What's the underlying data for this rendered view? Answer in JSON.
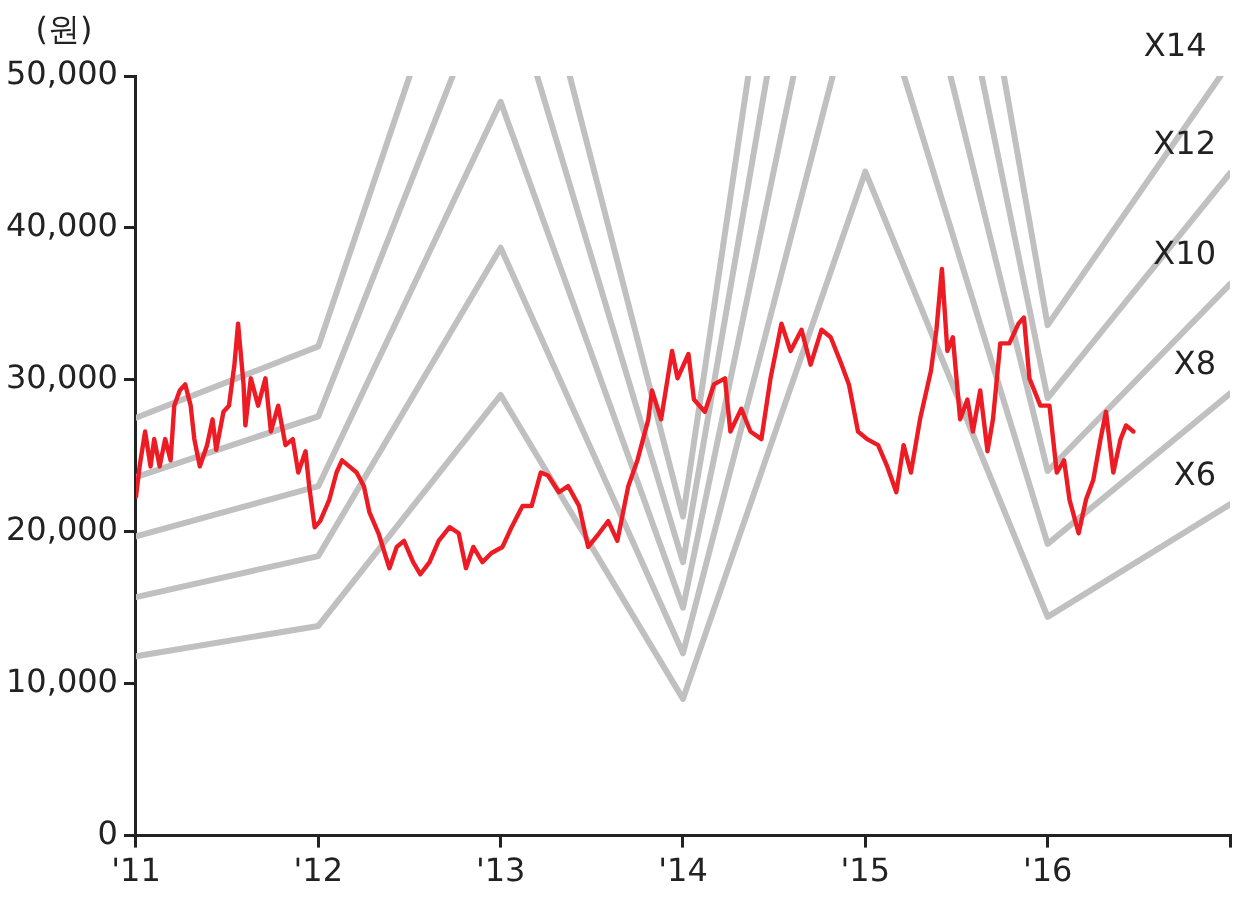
{
  "chart_data": {
    "type": "line",
    "ylabel": "(원)",
    "xlim": [
      2011,
      2017
    ],
    "ylim": [
      0,
      50000
    ],
    "xticks": [
      {
        "value": 2011,
        "label": "'11"
      },
      {
        "value": 2012,
        "label": "'12"
      },
      {
        "value": 2013,
        "label": "'13"
      },
      {
        "value": 2014,
        "label": "'14"
      },
      {
        "value": 2015,
        "label": "'15"
      },
      {
        "value": 2016,
        "label": "'16"
      },
      {
        "value": 2017,
        "label": null
      }
    ],
    "yticks": [
      0,
      {
        "value": 10000,
        "label": "10,000"
      },
      {
        "value": 20000,
        "label": "20,000"
      },
      {
        "value": 30000,
        "label": "30,000"
      },
      {
        "value": 40000,
        "label": "40,000"
      },
      {
        "value": 50000,
        "label": "50,000"
      }
    ],
    "grid": false,
    "legend": false,
    "marker": "none",
    "line_style": "solid",
    "series": [
      {
        "name": "X6",
        "color": "#c0c0c0",
        "x": [
          2011,
          2012,
          2013,
          2014,
          2015,
          2016,
          2017
        ],
        "values": [
          11800,
          13800,
          29000,
          9000,
          43700,
          14400,
          21800
        ]
      },
      {
        "name": "X8",
        "color": "#c0c0c0",
        "x": [
          2011,
          2012,
          2013,
          2014,
          2014.821,
          2015,
          2015.212,
          2016,
          2017
        ],
        "values": [
          15700,
          18400,
          38700,
          12000,
          50000,
          null,
          50000,
          19200,
          29100
        ]
      },
      {
        "name": "X10",
        "color": "#c0c0c0",
        "x": [
          2011,
          2012,
          2013,
          2014,
          2014.606,
          2015,
          2015.467,
          2016,
          2017
        ],
        "values": [
          19700,
          23000,
          48300,
          15000,
          50000,
          null,
          50000,
          24000,
          36300
        ]
      },
      {
        "name": "X12",
        "color": "#c0c0c0",
        "x": [
          2011,
          2012,
          2012.737,
          2013,
          2013.2,
          2014,
          2014.461,
          2015,
          2015.638,
          2016,
          2017
        ],
        "values": [
          23600,
          27600,
          50000,
          null,
          50000,
          18000,
          50000,
          null,
          50000,
          28800,
          43600
        ]
      },
      {
        "name": "X14",
        "color": "#c0c0c0",
        "x": [
          2011,
          2012,
          2012.501,
          2013,
          2013.379,
          2014,
          2014.358,
          2015,
          2015.76,
          2016,
          2016.948
        ],
        "values": [
          27500,
          32200,
          50000,
          null,
          50000,
          21000,
          50000,
          null,
          50000,
          33600,
          50000
        ]
      },
      {
        "color": "#ed1c24",
        "x": [
          2011.0,
          2011.02,
          2011.05,
          2011.08,
          2011.1,
          2011.13,
          2011.16,
          2011.19,
          2011.21,
          2011.24,
          2011.27,
          2011.3,
          2011.32,
          2011.35,
          2011.39,
          2011.42,
          2011.44,
          2011.48,
          2011.51,
          2011.54,
          2011.56,
          2011.59,
          2011.6,
          2011.63,
          2011.67,
          2011.71,
          2011.74,
          2011.78,
          2011.82,
          2011.86,
          2011.89,
          2011.93,
          2011.95,
          2011.98,
          2012.01,
          2012.06,
          2012.1,
          2012.13,
          2012.17,
          2012.21,
          2012.25,
          2012.28,
          2012.33,
          2012.39,
          2012.43,
          2012.47,
          2012.52,
          2012.56,
          2012.61,
          2012.66,
          2012.72,
          2012.77,
          2012.81,
          2012.85,
          2012.9,
          2012.95,
          2013.01,
          2013.06,
          2013.12,
          2013.17,
          2013.22,
          2013.26,
          2013.32,
          2013.37,
          2013.43,
          2013.48,
          2013.54,
          2013.59,
          2013.64,
          2013.7,
          2013.75,
          2013.81,
          2013.83,
          2013.88,
          2013.94,
          2013.97,
          2014.03,
          2014.06,
          2014.12,
          2014.17,
          2014.23,
          2014.26,
          2014.32,
          2014.37,
          2014.43,
          2014.48,
          2014.54,
          2014.59,
          2014.65,
          2014.7,
          2014.76,
          2014.81,
          2014.87,
          2014.91,
          2014.96,
          2015.01,
          2015.07,
          2015.12,
          2015.17,
          2015.21,
          2015.25,
          2015.3,
          2015.36,
          2015.39,
          2015.42,
          2015.45,
          2015.48,
          2015.52,
          2015.56,
          2015.59,
          2015.63,
          2015.67,
          2015.7,
          2015.74,
          2015.79,
          2015.84,
          2015.87,
          2015.9,
          2015.96,
          2016.01,
          2016.05,
          2016.09,
          2016.12,
          2016.17,
          2016.21,
          2016.25,
          2016.29,
          2016.32,
          2016.36,
          2016.4,
          2016.43,
          2016.47
        ],
        "values": [
          22300,
          24300,
          26600,
          24300,
          26100,
          24300,
          26100,
          24700,
          28300,
          29300,
          29700,
          28300,
          26100,
          24300,
          25700,
          27400,
          25400,
          27900,
          28300,
          31000,
          33700,
          29700,
          27000,
          30100,
          28300,
          30100,
          26600,
          28300,
          25700,
          26100,
          23900,
          25300,
          23000,
          20300,
          20700,
          22100,
          23900,
          24700,
          24300,
          23900,
          23000,
          21300,
          19900,
          17600,
          19000,
          19400,
          18000,
          17200,
          18000,
          19400,
          20300,
          19900,
          17600,
          19000,
          18000,
          18600,
          19000,
          20300,
          21700,
          21700,
          23900,
          23700,
          22600,
          23000,
          21700,
          19000,
          19900,
          20700,
          19400,
          23000,
          24700,
          27400,
          29300,
          27400,
          31900,
          30100,
          31700,
          28700,
          27900,
          29700,
          30100,
          26600,
          28100,
          26600,
          26100,
          30100,
          33700,
          31900,
          33300,
          31000,
          33300,
          32800,
          31000,
          29700,
          26600,
          26100,
          25700,
          24300,
          22600,
          25700,
          23900,
          27400,
          30600,
          33300,
          37300,
          31900,
          32800,
          27400,
          28700,
          26600,
          29300,
          25300,
          27400,
          32400,
          32400,
          33700,
          34100,
          30100,
          28300,
          28300,
          23900,
          24700,
          22100,
          19900,
          22100,
          23400,
          26100,
          27900,
          23900,
          26100,
          27000,
          26600
        ]
      }
    ]
  }
}
